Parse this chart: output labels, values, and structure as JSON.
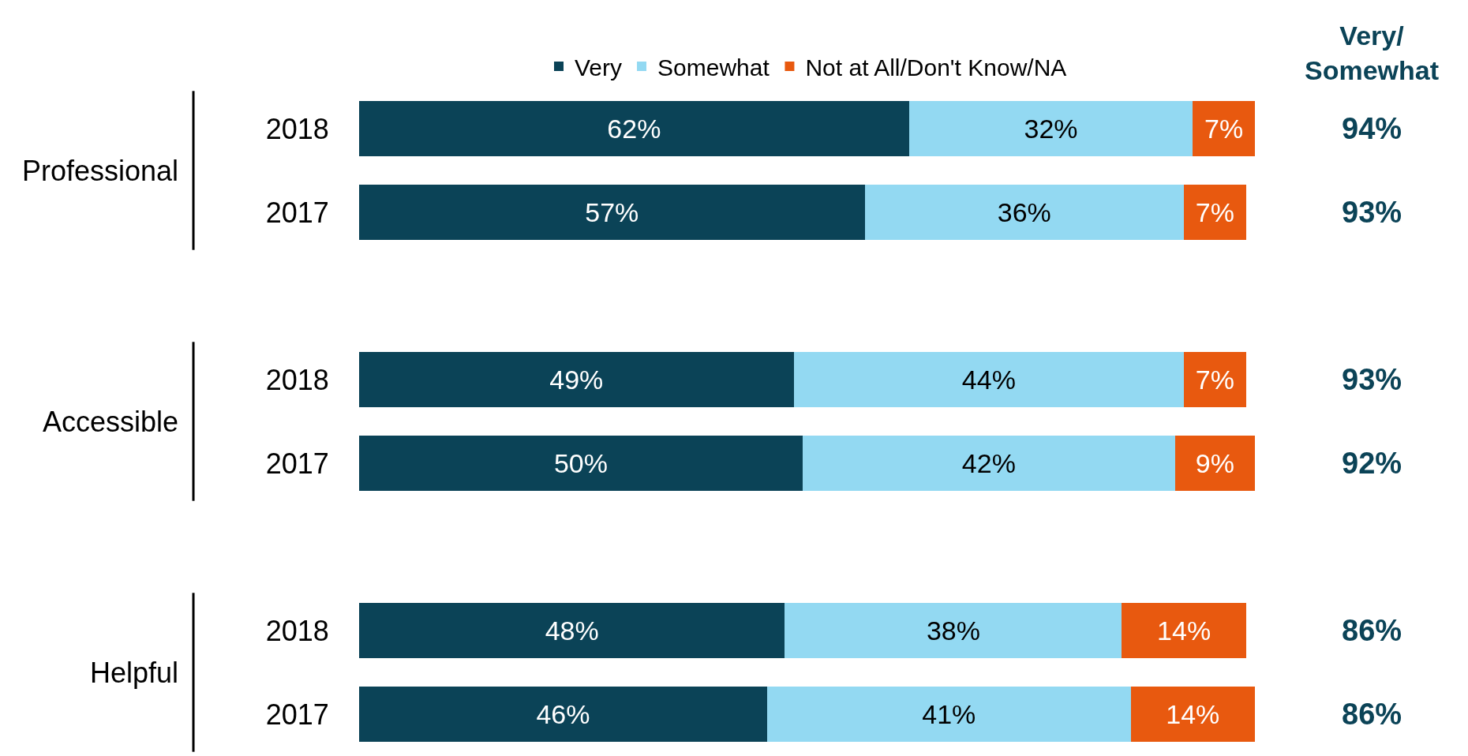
{
  "chart_data": {
    "type": "bar",
    "orientation": "horizontal",
    "stacked": true,
    "legend": "top",
    "tick_labels": "y",
    "categories": [
      "2018",
      "2017",
      "2018",
      "2017",
      "2018",
      "2017"
    ],
    "series": [
      {
        "name": "Very",
        "color": "#0b4357",
        "values": [
          62,
          57,
          49,
          50,
          48,
          46
        ],
        "value_labels": [
          "62%",
          "57%",
          "49%",
          "50%",
          "48%",
          "46%"
        ]
      },
      {
        "name": "Somewhat",
        "color": "#93d9f2",
        "values": [
          32,
          36,
          44,
          42,
          38,
          41
        ],
        "value_labels": [
          "32%",
          "36%",
          "44%",
          "42%",
          "38%",
          "41%"
        ]
      },
      {
        "name": "Not at All/Don't Know/NA",
        "color": "#e8590f",
        "values": [
          7,
          7,
          7,
          9,
          14,
          14
        ],
        "value_labels": [
          "7%",
          "7%",
          "7%",
          "9%",
          "14%",
          "14%"
        ]
      }
    ],
    "annotations": [
      "Professional",
      "Accessible",
      "Helpful",
      "Very/\nSomewhat",
      "94%",
      "93%",
      "93%",
      "92%",
      "86%",
      "86%"
    ]
  }
}
